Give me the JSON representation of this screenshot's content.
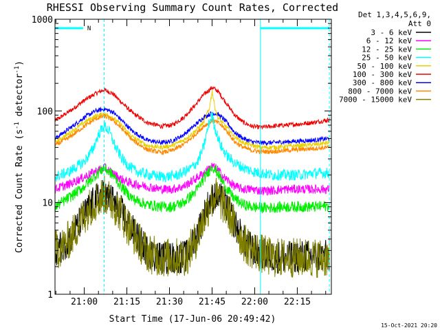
{
  "chart_data": {
    "type": "line",
    "title": "RHESSI Observing Summary Count Rates, Corrected",
    "xlabel": "Start Time (17-Jun-06 20:49:42)",
    "ylabel_main": "Corrected Count Rate (s",
    "ylabel_sup1": "-1",
    "ylabel_mid": " detector",
    "ylabel_sup2": "-1",
    "ylabel_end": ")",
    "timestamp": "15-Oct-2021 20:20",
    "x_start_minutes": 1249.7,
    "xlim_minutes": [
      1249.7,
      1347.0
    ],
    "ylim": [
      1,
      1000
    ],
    "y_scale": "log",
    "x_ticks": [
      {
        "minutes": 1260,
        "label": "21:00"
      },
      {
        "minutes": 1275,
        "label": "21:15"
      },
      {
        "minutes": 1290,
        "label": "21:30"
      },
      {
        "minutes": 1305,
        "label": "21:45"
      },
      {
        "minutes": 1320,
        "label": "22:00"
      },
      {
        "minutes": 1335,
        "label": "22:15"
      }
    ],
    "y_ticks": [
      {
        "value": 1,
        "label": "1"
      },
      {
        "value": 10,
        "label": "10"
      },
      {
        "value": 100,
        "label": "100"
      },
      {
        "value": 1000,
        "label": "1000"
      }
    ],
    "legend": {
      "placement": "right",
      "header_line1": "Det 1,3,4,5,6,9,",
      "header_line2": "Att 0",
      "items": [
        {
          "label": "3 - 6 keV",
          "color": "#000000"
        },
        {
          "label": "6 - 12 keV",
          "color": "#ff00ff"
        },
        {
          "label": "12 - 25 keV",
          "color": "#00ee00"
        },
        {
          "label": "25 - 50 keV",
          "color": "#00ffff"
        },
        {
          "label": "50 - 100 keV",
          "color": "#e8d000"
        },
        {
          "label": "100 - 300 keV",
          "color": "#ee0000"
        },
        {
          "label": "300 - 800 keV",
          "color": "#0000ff"
        },
        {
          "label": "800 - 7000 keV",
          "color": "#ff8800"
        },
        {
          "label": "7000 - 15000 keV",
          "color": "#808000"
        }
      ]
    },
    "annotations": {
      "night_bars": [
        {
          "start": 1249.7,
          "end": 1259.6,
          "label": "N"
        },
        {
          "start": 1322.0,
          "end": 1346.3,
          "label": ""
        }
      ],
      "solid_vlines": [
        1249.7,
        1322.0
      ],
      "dashed_vlines": [
        1267.0,
        1346.3
      ]
    },
    "series": [
      {
        "name": "100 - 300 keV",
        "color": "#ee0000",
        "x": [
          1249.7,
          1255,
          1260,
          1264,
          1267,
          1270,
          1273,
          1277,
          1282,
          1287,
          1291,
          1295,
          1299,
          1302,
          1305,
          1307,
          1309,
          1311,
          1313,
          1316,
          1319,
          1322,
          1326,
          1331,
          1336,
          1341,
          1346.3
        ],
        "y": [
          78,
          100,
          130,
          155,
          170,
          155,
          125,
          95,
          75,
          68,
          70,
          85,
          115,
          150,
          180,
          165,
          135,
          110,
          90,
          75,
          68,
          66,
          68,
          70,
          72,
          75,
          80
        ]
      },
      {
        "name": "300 - 800 keV",
        "color": "#0000ff",
        "x": [
          1249.7,
          1255,
          1260,
          1264,
          1267,
          1270,
          1273,
          1277,
          1282,
          1287,
          1291,
          1295,
          1299,
          1302,
          1305,
          1307,
          1309,
          1311,
          1313,
          1316,
          1319,
          1322,
          1326,
          1331,
          1336,
          1341,
          1346.3
        ],
        "y": [
          50,
          65,
          85,
          100,
          105,
          98,
          80,
          60,
          48,
          45,
          47,
          55,
          70,
          85,
          95,
          92,
          82,
          70,
          58,
          50,
          46,
          45,
          45,
          46,
          47,
          48,
          50
        ]
      },
      {
        "name": "50 - 100 keV",
        "color": "#e8d000",
        "x": [
          1249.7,
          1255,
          1260,
          1264,
          1267,
          1270,
          1273,
          1277,
          1282,
          1287,
          1291,
          1295,
          1299,
          1302,
          1304,
          1305,
          1306,
          1307,
          1309,
          1311,
          1313,
          1316,
          1319,
          1322,
          1326,
          1331,
          1336,
          1341,
          1346.3
        ],
        "y": [
          45,
          58,
          75,
          88,
          93,
          85,
          70,
          52,
          42,
          40,
          42,
          48,
          60,
          75,
          105,
          165,
          110,
          85,
          72,
          62,
          52,
          45,
          42,
          40,
          40,
          41,
          42,
          43,
          45
        ]
      },
      {
        "name": "800 - 7000 keV",
        "color": "#ff8800",
        "x": [
          1249.7,
          1255,
          1260,
          1264,
          1267,
          1270,
          1273,
          1277,
          1282,
          1287,
          1291,
          1295,
          1299,
          1302,
          1305,
          1307,
          1309,
          1311,
          1313,
          1316,
          1319,
          1322,
          1326,
          1331,
          1336,
          1341,
          1346.3
        ],
        "y": [
          42,
          52,
          68,
          82,
          88,
          80,
          65,
          48,
          38,
          35,
          37,
          43,
          55,
          68,
          78,
          75,
          66,
          56,
          46,
          40,
          37,
          36,
          36,
          37,
          38,
          39,
          40
        ]
      },
      {
        "name": "25 - 50 keV",
        "color": "#00ffff",
        "x": [
          1249.7,
          1255,
          1260,
          1263,
          1265,
          1267,
          1269,
          1271,
          1274,
          1278,
          1283,
          1288,
          1293,
          1297,
          1300,
          1302,
          1303,
          1304,
          1305,
          1306,
          1308,
          1310,
          1313,
          1316,
          1319,
          1322,
          1326,
          1331,
          1336,
          1341,
          1346.3
        ],
        "y": [
          19,
          22,
          28,
          38,
          55,
          70,
          58,
          40,
          28,
          22,
          20,
          19,
          20,
          23,
          28,
          40,
          55,
          75,
          90,
          65,
          42,
          33,
          27,
          24,
          22,
          21,
          20,
          20,
          20,
          21,
          21
        ]
      },
      {
        "name": "6 - 12 keV",
        "color": "#ff00ff",
        "x": [
          1249.7,
          1255,
          1260,
          1264,
          1267,
          1270,
          1273,
          1277,
          1282,
          1287,
          1291,
          1295,
          1299,
          1302,
          1305,
          1307,
          1309,
          1311,
          1313,
          1316,
          1319,
          1322,
          1326,
          1331,
          1336,
          1341,
          1346.3
        ],
        "y": [
          14,
          16,
          19,
          22,
          24,
          21,
          18,
          16,
          15,
          14,
          14,
          15,
          18,
          21,
          25,
          23,
          19,
          17,
          15,
          14,
          14,
          13.5,
          13.5,
          14,
          14,
          14,
          14
        ]
      },
      {
        "name": "12 - 25 keV",
        "color": "#00ee00",
        "x": [
          1249.7,
          1255,
          1260,
          1264,
          1267,
          1270,
          1273,
          1277,
          1282,
          1287,
          1291,
          1295,
          1299,
          1302,
          1305,
          1307,
          1309,
          1311,
          1313,
          1316,
          1319,
          1322,
          1326,
          1331,
          1336,
          1341,
          1346.3
        ],
        "y": [
          9,
          11.5,
          15,
          20,
          24,
          20,
          15,
          11,
          9.5,
          9,
          9,
          10,
          13,
          18,
          25,
          21,
          16,
          13,
          11,
          9.5,
          9,
          8.8,
          8.8,
          9,
          9,
          9,
          9.2
        ]
      },
      {
        "name": "3 - 6 keV",
        "color": "#000000",
        "x": [
          1249.7,
          1253,
          1256,
          1259,
          1262,
          1265,
          1267,
          1270,
          1273,
          1276,
          1279,
          1282,
          1285,
          1288,
          1292,
          1296,
          1299,
          1302,
          1304,
          1306,
          1308,
          1311,
          1314,
          1317,
          1320,
          1322,
          1326,
          1331,
          1336,
          1341,
          1346.3
        ],
        "y": [
          3,
          3.5,
          4.5,
          6.5,
          9,
          11.5,
          12,
          10.5,
          8,
          5.5,
          4,
          3,
          2.6,
          2.5,
          2.5,
          2.6,
          4,
          7,
          10,
          12,
          11,
          8,
          5,
          3.5,
          3,
          2.8,
          2.6,
          2.5,
          2.6,
          2.6,
          2.6
        ]
      },
      {
        "name": "7000 - 15000 keV",
        "color": "#808000",
        "x": [
          1249.7,
          1253,
          1256,
          1259,
          1262,
          1265,
          1267,
          1270,
          1273,
          1276,
          1279,
          1282,
          1285,
          1288,
          1292,
          1296,
          1299,
          1302,
          1304,
          1306,
          1308,
          1311,
          1314,
          1317,
          1320,
          1322,
          1326,
          1331,
          1336,
          1341,
          1346.3
        ],
        "y": [
          3,
          3.4,
          4.5,
          6.5,
          9,
          11,
          12,
          10,
          7.5,
          5.2,
          3.8,
          2.9,
          2.6,
          2.5,
          2.5,
          2.6,
          3.8,
          6.5,
          9.5,
          12,
          10.5,
          7.5,
          4.8,
          3.4,
          3,
          2.8,
          2.5,
          2.5,
          2.5,
          2.5,
          2.5
        ]
      }
    ]
  }
}
